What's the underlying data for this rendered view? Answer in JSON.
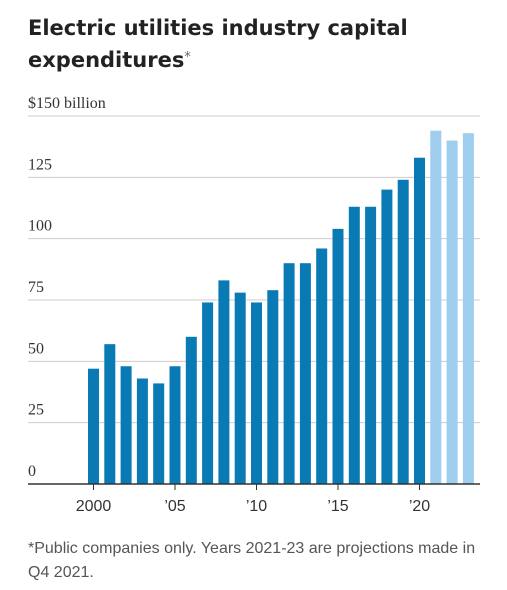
{
  "title": "Electric utilities industry capital expenditures",
  "title_marker": "*",
  "footnote": "*Public companies only. Years 2021-23 are projections made in Q4 2021.",
  "colors": {
    "actual": "#0a7ab4",
    "projection": "#9fcdee",
    "grid": "#cccccc",
    "axis": "#333333"
  },
  "chart_data": {
    "type": "bar",
    "title": "Electric utilities industry capital expenditures",
    "xlabel": "",
    "ylabel": "",
    "categories": [
      2000,
      2001,
      2002,
      2003,
      2004,
      2005,
      2006,
      2007,
      2008,
      2009,
      2010,
      2011,
      2012,
      2013,
      2014,
      2015,
      2016,
      2017,
      2018,
      2019,
      2020,
      2021,
      2022,
      2023
    ],
    "values": [
      47,
      57,
      48,
      43,
      41,
      48,
      60,
      74,
      83,
      78,
      74,
      79,
      90,
      90,
      96,
      104,
      113,
      113,
      120,
      124,
      133,
      144,
      140,
      143
    ],
    "projection_from": 2021,
    "ylim": [
      0,
      150
    ],
    "yticks": [
      0,
      25,
      50,
      75,
      100,
      125,
      150
    ],
    "ytick_labels": [
      "0",
      "25",
      "50",
      "75",
      "100",
      "125",
      "$150 billion"
    ],
    "xticks": [
      2000,
      2005,
      2010,
      2015,
      2020
    ],
    "xtick_labels": [
      "2000",
      "’05",
      "’10",
      "’15",
      "’20"
    ],
    "grid": true
  }
}
